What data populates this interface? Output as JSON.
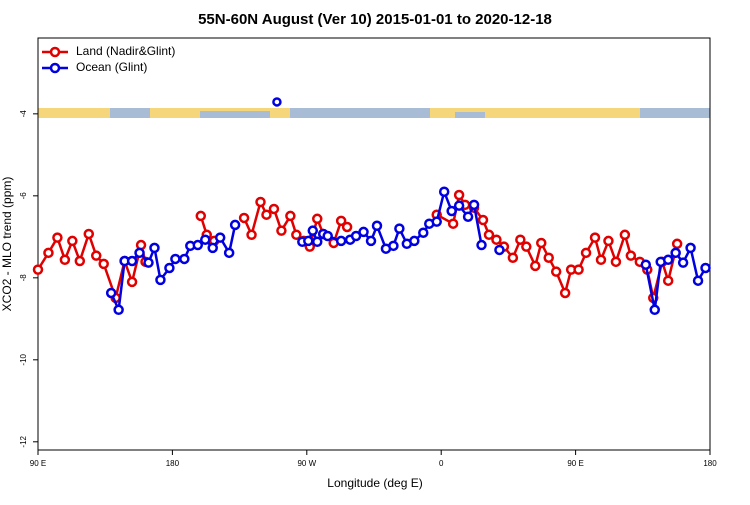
{
  "chart_data": {
    "type": "line",
    "title": "55N-60N August (Ver 10)   2015-01-01 to 2020-12-18",
    "x_label": "Longitude (deg E)",
    "y_label": "XCO2 - MLO trend (ppm)",
    "xlim": [
      90,
      540
    ],
    "ylim": [
      -12.2,
      -2.15
    ],
    "xticks": [
      {
        "value": 90,
        "label": "90 E"
      },
      {
        "value": 180,
        "label": "180"
      },
      {
        "value": 270,
        "label": "90 W"
      },
      {
        "value": 360,
        "label": "0"
      },
      {
        "value": 450,
        "label": "90 E"
      },
      {
        "value": 540,
        "label": "180"
      }
    ],
    "yticks": [
      -12,
      -10,
      -8,
      -6,
      -4
    ],
    "legend": "upper left",
    "series": [
      {
        "name": "Land (Nadir&Glint)",
        "color": "#e00000",
        "x": [
          90,
          97,
          103,
          108,
          113,
          118,
          124,
          129,
          134,
          142,
          148,
          153,
          159,
          162,
          null,
          199,
          203,
          208,
          null,
          228,
          233,
          239,
          243,
          248,
          253,
          259,
          263,
          268,
          272,
          277,
          281,
          288,
          293,
          297,
          null,
          357,
          368,
          372,
          376,
          382,
          388,
          392,
          397,
          402,
          408,
          413,
          417,
          423,
          427,
          432,
          437,
          443,
          447,
          452,
          457,
          463,
          467,
          472,
          477,
          483,
          487,
          493,
          498,
          502,
          508,
          512,
          518
        ],
        "values": [
          -7.8,
          -7.39,
          -7.02,
          -7.56,
          -7.1,
          -7.59,
          -6.93,
          -7.46,
          -7.66,
          -8.49,
          -7.59,
          -8.1,
          -7.2,
          -7.61,
          null,
          -6.49,
          -6.95,
          -7.1,
          null,
          -6.54,
          -6.95,
          -6.15,
          -6.46,
          -6.32,
          -6.85,
          -6.49,
          -6.95,
          -7.1,
          -7.24,
          -6.56,
          -6.93,
          -7.15,
          -6.61,
          -6.76,
          null,
          -6.46,
          -6.68,
          -5.98,
          -6.22,
          -6.29,
          -6.59,
          -6.95,
          -7.07,
          -7.24,
          -7.51,
          -7.07,
          -7.24,
          -7.71,
          -7.15,
          -7.51,
          -7.85,
          -8.37,
          -7.8,
          -7.8,
          -7.39,
          -7.02,
          -7.56,
          -7.1,
          -7.61,
          -6.95,
          -7.46,
          -7.61,
          -7.8,
          -8.49,
          -7.61,
          -8.07,
          -7.17
        ]
      },
      {
        "name": "Ocean (Glint)",
        "color": "#0000e0",
        "x": [
          139,
          144,
          148,
          153,
          158,
          164,
          168,
          172,
          178,
          182,
          188,
          192,
          197,
          202,
          207,
          212,
          218,
          222,
          null,
          267,
          271,
          274,
          277,
          281,
          284,
          293,
          299,
          303,
          308,
          313,
          317,
          323,
          328,
          332,
          337,
          342,
          348,
          352,
          357,
          362,
          367,
          372,
          378,
          382,
          387,
          null,
          399,
          null,
          497,
          503,
          507,
          512,
          517,
          522,
          527,
          532,
          537
        ],
        "values": [
          -8.37,
          -8.78,
          -7.59,
          -7.59,
          -7.39,
          -7.63,
          -7.27,
          -8.05,
          -7.76,
          -7.54,
          -7.54,
          -7.22,
          -7.2,
          -7.07,
          -7.27,
          -7.02,
          -7.39,
          -6.71,
          null,
          -7.12,
          -7.1,
          -6.85,
          -7.12,
          -6.93,
          -6.98,
          -7.1,
          -7.07,
          -6.98,
          -6.88,
          -7.1,
          -6.73,
          -7.29,
          -7.22,
          -6.8,
          -7.17,
          -7.1,
          -6.9,
          -6.68,
          -6.63,
          -5.9,
          -6.37,
          -6.24,
          -6.51,
          -6.22,
          -7.2,
          null,
          -7.32,
          null,
          -7.68,
          -8.78,
          -7.61,
          -7.56,
          -7.39,
          -7.63,
          -7.27,
          -8.07,
          -7.76
        ],
        "isolated_points": {
          "x": [
            250
          ],
          "values": [
            -3.71
          ]
        }
      }
    ]
  }
}
